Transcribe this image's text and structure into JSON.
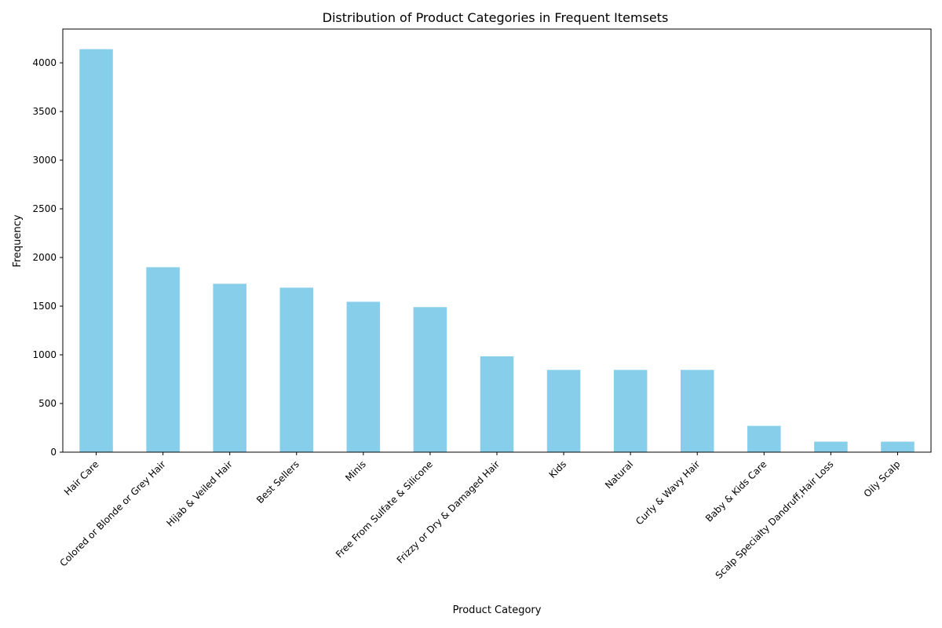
{
  "chart_data": {
    "type": "bar",
    "title": "Distribution of Product Categories in Frequent Itemsets",
    "xlabel": "Product Category",
    "ylabel": "Frequency",
    "categories": [
      "Hair Care",
      "Colored or Blonde or Grey Hair",
      "Hijab & Veiled Hair",
      "Best Sellers",
      "Minis",
      "Free From Sulfate & Silicone",
      "Frizzy or Dry & Damaged Hair",
      "Kids",
      "Natural",
      "Curly & Wavy Hair",
      "Baby & Kids Care",
      "Scalp Specialty Dandruff,Hair Loss",
      "Oily Scalp"
    ],
    "values": [
      4140,
      1900,
      1730,
      1690,
      1545,
      1490,
      985,
      845,
      845,
      845,
      270,
      108,
      108
    ],
    "ylim": [
      0,
      4347
    ],
    "yticks": [
      0,
      500,
      1000,
      1500,
      2000,
      2500,
      3000,
      3500,
      4000
    ],
    "bar_color": "#87ceeb",
    "grid": false,
    "legend": false
  }
}
